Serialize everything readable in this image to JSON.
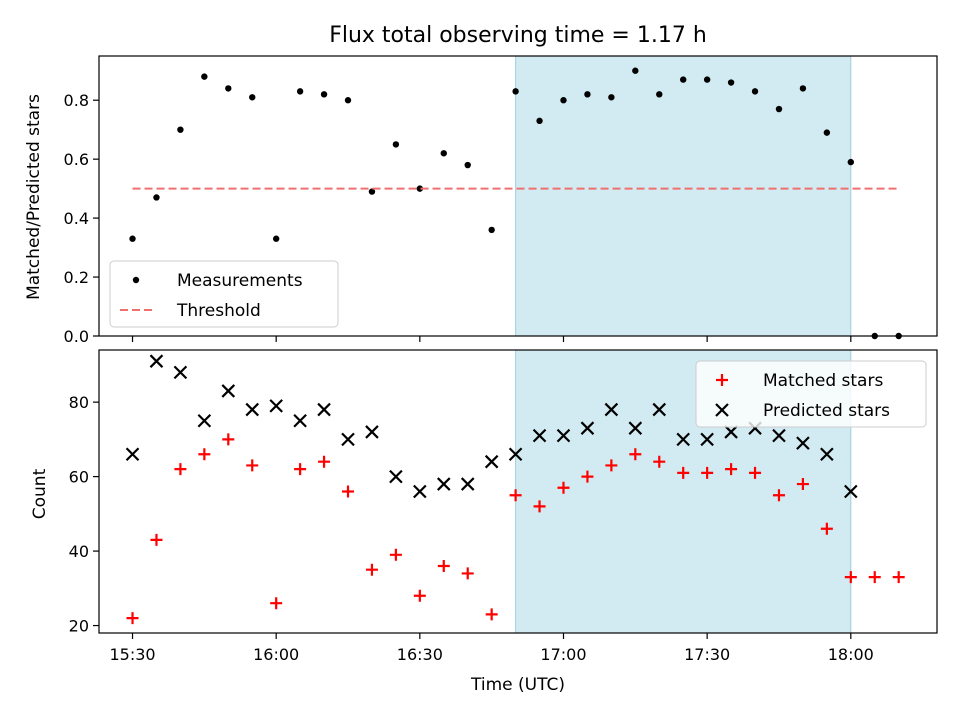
{
  "figure": {
    "title": "Flux total observing time = 1.17 h",
    "xlabel": "Time (UTC)",
    "x_tick_labels": [
      "15:30",
      "16:00",
      "16:30",
      "17:00",
      "17:30",
      "18:00"
    ]
  },
  "chart_data": [
    {
      "type": "scatter",
      "ylabel": "Matched/Predicted stars",
      "xlim": [
        "15:23",
        "18:18"
      ],
      "ylim": [
        0,
        0.95
      ],
      "y_ticks": [
        "0.0",
        "0.2",
        "0.4",
        "0.6",
        "0.8"
      ],
      "shaded_region": {
        "x_start": "16:50",
        "x_end": "18:00",
        "color": "#add8e6"
      },
      "legend": {
        "placement": "lower-left",
        "entries": [
          "Measurements",
          "Threshold"
        ]
      },
      "series": [
        {
          "name": "Measurements",
          "marker": "dot",
          "color": "#000000",
          "x": [
            "15:30",
            "15:35",
            "15:40",
            "15:45",
            "15:50",
            "15:55",
            "16:00",
            "16:05",
            "16:10",
            "16:15",
            "16:20",
            "16:25",
            "16:30",
            "16:35",
            "16:40",
            "16:45",
            "16:50",
            "16:55",
            "17:00",
            "17:05",
            "17:10",
            "17:15",
            "17:20",
            "17:25",
            "17:30",
            "17:35",
            "17:40",
            "17:45",
            "17:50",
            "17:55",
            "18:00",
            "18:05",
            "18:10"
          ],
          "y": [
            0.33,
            0.47,
            0.7,
            0.88,
            0.84,
            0.81,
            0.33,
            0.83,
            0.82,
            0.8,
            0.49,
            0.65,
            0.5,
            0.62,
            0.58,
            0.36,
            0.83,
            0.73,
            0.8,
            0.82,
            0.81,
            0.9,
            0.82,
            0.87,
            0.87,
            0.86,
            0.83,
            0.77,
            0.84,
            0.69,
            0.59,
            0.0,
            0.0
          ]
        },
        {
          "name": "Threshold",
          "style": "dashed",
          "color": "#f07070",
          "x": [
            "15:30",
            "18:10"
          ],
          "y": [
            0.5,
            0.5
          ]
        }
      ]
    },
    {
      "type": "scatter",
      "ylabel": "Count",
      "xlim": [
        "15:23",
        "18:18"
      ],
      "ylim": [
        18,
        94
      ],
      "y_ticks": [
        "20",
        "40",
        "60",
        "80"
      ],
      "shaded_region": {
        "x_start": "16:50",
        "x_end": "18:00",
        "color": "#add8e6"
      },
      "legend": {
        "placement": "upper-right",
        "entries": [
          "Matched stars",
          "Predicted stars"
        ]
      },
      "series": [
        {
          "name": "Matched stars",
          "marker": "plus",
          "color": "#ff0000",
          "x": [
            "15:30",
            "15:35",
            "15:40",
            "15:45",
            "15:50",
            "15:55",
            "16:00",
            "16:05",
            "16:10",
            "16:15",
            "16:20",
            "16:25",
            "16:30",
            "16:35",
            "16:40",
            "16:45",
            "16:50",
            "16:55",
            "17:00",
            "17:05",
            "17:10",
            "17:15",
            "17:20",
            "17:25",
            "17:30",
            "17:35",
            "17:40",
            "17:45",
            "17:50",
            "17:55",
            "18:00",
            "18:05",
            "18:10"
          ],
          "y": [
            22,
            43,
            62,
            66,
            70,
            63,
            26,
            62,
            64,
            56,
            35,
            39,
            28,
            36,
            34,
            23,
            55,
            52,
            57,
            60,
            63,
            66,
            64,
            61,
            61,
            62,
            61,
            55,
            58,
            46,
            33,
            33,
            33
          ]
        },
        {
          "name": "Predicted stars",
          "marker": "x",
          "color": "#000000",
          "x": [
            "15:30",
            "15:35",
            "15:40",
            "15:45",
            "15:50",
            "15:55",
            "16:00",
            "16:05",
            "16:10",
            "16:15",
            "16:20",
            "16:25",
            "16:30",
            "16:35",
            "16:40",
            "16:45",
            "16:50",
            "16:55",
            "17:00",
            "17:05",
            "17:10",
            "17:15",
            "17:20",
            "17:25",
            "17:30",
            "17:35",
            "17:40",
            "17:45",
            "17:50",
            "17:55",
            "18:00"
          ],
          "y": [
            66,
            91,
            88,
            75,
            83,
            78,
            79,
            75,
            78,
            70,
            72,
            60,
            56,
            58,
            58,
            64,
            66,
            71,
            71,
            73,
            78,
            73,
            78,
            70,
            70,
            72,
            73,
            71,
            69,
            66,
            56
          ]
        }
      ]
    }
  ]
}
